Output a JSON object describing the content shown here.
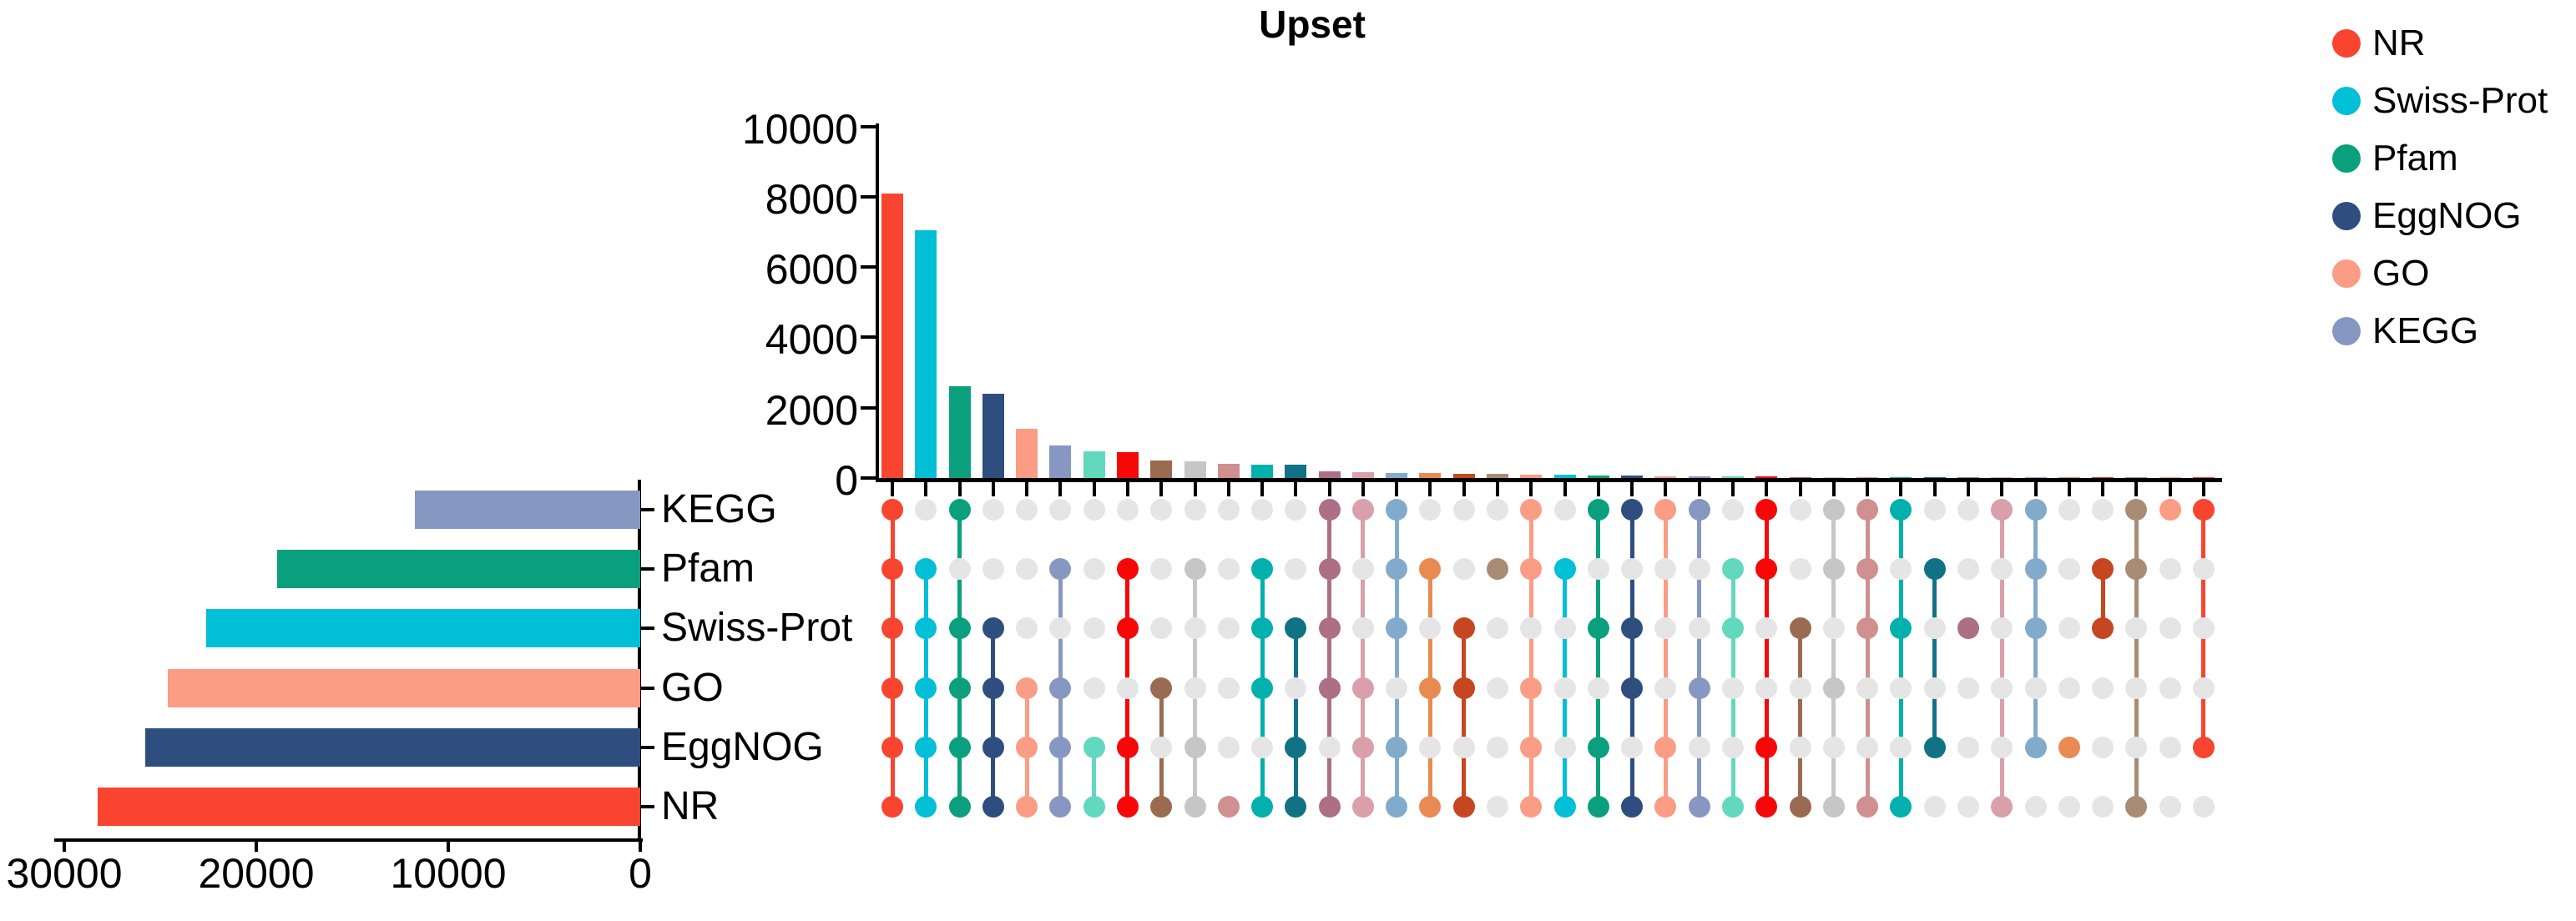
{
  "title": "Upset",
  "legend": [
    {
      "label": "NR",
      "color": "#F9452F"
    },
    {
      "label": "Swiss-Prot",
      "color": "#00BFD6"
    },
    {
      "label": "Pfam",
      "color": "#0AA07D"
    },
    {
      "label": "EggNOG",
      "color": "#2E4E80"
    },
    {
      "label": "GO",
      "color": "#FB9C85"
    },
    {
      "label": "KEGG",
      "color": "#8697C1"
    }
  ],
  "chart_data": {
    "type": "upset",
    "title": "Upset",
    "legend_position": "top-right",
    "set_size_chart": {
      "type": "bar",
      "orientation": "horizontal",
      "axis_ticks": [
        30000,
        20000,
        10000,
        0
      ],
      "xlim": [
        30000,
        0
      ],
      "categories": [
        "KEGG",
        "Pfam",
        "Swiss-Prot",
        "GO",
        "EggNOG",
        "NR"
      ],
      "values": [
        11750,
        18900,
        22600,
        24600,
        25800,
        28260
      ],
      "colors": [
        "#8697C1",
        "#0AA07D",
        "#00BFD6",
        "#FB9C85",
        "#2E4E80",
        "#F9452F"
      ]
    },
    "intersection_chart": {
      "type": "bar",
      "orientation": "vertical",
      "axis_ticks": [
        0,
        2000,
        4000,
        6000,
        8000,
        10000
      ],
      "ylim": [
        0,
        10000
      ],
      "items": [
        {
          "sets": [
            "KEGG",
            "Pfam",
            "Swiss-Prot",
            "GO",
            "EggNOG",
            "NR"
          ],
          "size": 8080,
          "color": "#F9452F"
        },
        {
          "sets": [
            "Pfam",
            "Swiss-Prot",
            "GO",
            "EggNOG",
            "NR"
          ],
          "size": 7050,
          "color": "#00BFD6"
        },
        {
          "sets": [
            "KEGG",
            "Swiss-Prot",
            "GO",
            "EggNOG",
            "NR"
          ],
          "size": 2610,
          "color": "#0AA07D"
        },
        {
          "sets": [
            "Swiss-Prot",
            "GO",
            "EggNOG",
            "NR"
          ],
          "size": 2390,
          "color": "#2E4E80"
        },
        {
          "sets": [
            "GO",
            "EggNOG",
            "NR"
          ],
          "size": 1400,
          "color": "#FB9C85"
        },
        {
          "sets": [
            "Pfam",
            "GO",
            "EggNOG",
            "NR"
          ],
          "size": 920,
          "color": "#8697C1"
        },
        {
          "sets": [
            "EggNOG",
            "NR"
          ],
          "size": 760,
          "color": "#62D9BE"
        },
        {
          "sets": [
            "Pfam",
            "Swiss-Prot",
            "EggNOG",
            "NR"
          ],
          "size": 740,
          "color": "#F70808"
        },
        {
          "sets": [
            "GO",
            "NR"
          ],
          "size": 500,
          "color": "#9A6B50"
        },
        {
          "sets": [
            "Pfam",
            "EggNOG",
            "NR"
          ],
          "size": 470,
          "color": "#C6C6C6"
        },
        {
          "sets": [
            "NR"
          ],
          "size": 400,
          "color": "#CF908F"
        },
        {
          "sets": [
            "Pfam",
            "Swiss-Prot",
            "GO",
            "NR"
          ],
          "size": 390,
          "color": "#02B1AE"
        },
        {
          "sets": [
            "Swiss-Prot",
            "EggNOG",
            "NR"
          ],
          "size": 370,
          "color": "#117286"
        },
        {
          "sets": [
            "KEGG",
            "Pfam",
            "Swiss-Prot",
            "GO",
            "NR"
          ],
          "size": 200,
          "color": "#AC6F86"
        },
        {
          "sets": [
            "KEGG",
            "GO",
            "EggNOG",
            "NR"
          ],
          "size": 170,
          "color": "#D9A0AB"
        },
        {
          "sets": [
            "KEGG",
            "Pfam",
            "Swiss-Prot",
            "EggNOG",
            "NR"
          ],
          "size": 150,
          "color": "#82AACB"
        },
        {
          "sets": [
            "Pfam",
            "GO",
            "NR"
          ],
          "size": 135,
          "color": "#E98A52"
        },
        {
          "sets": [
            "Swiss-Prot",
            "GO",
            "NR"
          ],
          "size": 125,
          "color": "#C64621"
        },
        {
          "sets": [
            "Pfam"
          ],
          "size": 110,
          "color": "#A98C76"
        },
        {
          "sets": [
            "KEGG",
            "Pfam",
            "GO",
            "EggNOG",
            "NR"
          ],
          "size": 105,
          "color": "#FB9C85"
        },
        {
          "sets": [
            "Pfam",
            "NR"
          ],
          "size": 90,
          "color": "#00BFD6"
        },
        {
          "sets": [
            "KEGG",
            "Swiss-Prot",
            "EggNOG",
            "NR"
          ],
          "size": 72,
          "color": "#0AA07D"
        },
        {
          "sets": [
            "KEGG",
            "Swiss-Prot",
            "GO",
            "NR"
          ],
          "size": 64,
          "color": "#2E4E80"
        },
        {
          "sets": [
            "KEGG",
            "EggNOG",
            "NR"
          ],
          "size": 56,
          "color": "#FB9C85"
        },
        {
          "sets": [
            "KEGG",
            "GO",
            "NR"
          ],
          "size": 48,
          "color": "#8697C1"
        },
        {
          "sets": [
            "Pfam",
            "Swiss-Prot",
            "NR"
          ],
          "size": 42,
          "color": "#62D9BE"
        },
        {
          "sets": [
            "KEGG",
            "Pfam",
            "EggNOG",
            "NR"
          ],
          "size": 38,
          "color": "#F70808"
        },
        {
          "sets": [
            "Swiss-Prot",
            "NR"
          ],
          "size": 35,
          "color": "#9A6B50"
        },
        {
          "sets": [
            "KEGG",
            "Pfam",
            "GO",
            "NR"
          ],
          "size": 32,
          "color": "#C6C6C6"
        },
        {
          "sets": [
            "KEGG",
            "Pfam",
            "Swiss-Prot",
            "NR"
          ],
          "size": 29,
          "color": "#CF908F"
        },
        {
          "sets": [
            "KEGG",
            "Swiss-Prot",
            "NR"
          ],
          "size": 26,
          "color": "#02B1AE"
        },
        {
          "sets": [
            "Pfam",
            "EggNOG"
          ],
          "size": 24,
          "color": "#117286"
        },
        {
          "sets": [
            "Swiss-Prot"
          ],
          "size": 22,
          "color": "#AC6F86"
        },
        {
          "sets": [
            "KEGG",
            "NR"
          ],
          "size": 20,
          "color": "#D9A0AB"
        },
        {
          "sets": [
            "KEGG",
            "Pfam",
            "Swiss-Prot",
            "EggNOG"
          ],
          "size": 18,
          "color": "#82AACB"
        },
        {
          "sets": [
            "EggNOG"
          ],
          "size": 16,
          "color": "#E98A52"
        },
        {
          "sets": [
            "Pfam",
            "Swiss-Prot"
          ],
          "size": 14,
          "color": "#C64621"
        },
        {
          "sets": [
            "KEGG",
            "Pfam",
            "NR"
          ],
          "size": 12,
          "color": "#A98C76"
        },
        {
          "sets": [
            "KEGG"
          ],
          "size": 10,
          "color": "#FB9C85"
        },
        {
          "sets": [
            "KEGG",
            "EggNOG"
          ],
          "size": 8,
          "color": "#F9452F"
        }
      ]
    },
    "matrix": {
      "row_order": [
        "KEGG",
        "Pfam",
        "Swiss-Prot",
        "GO",
        "EggNOG",
        "NR"
      ],
      "empty_dot_color": "#E5E5E5"
    }
  }
}
